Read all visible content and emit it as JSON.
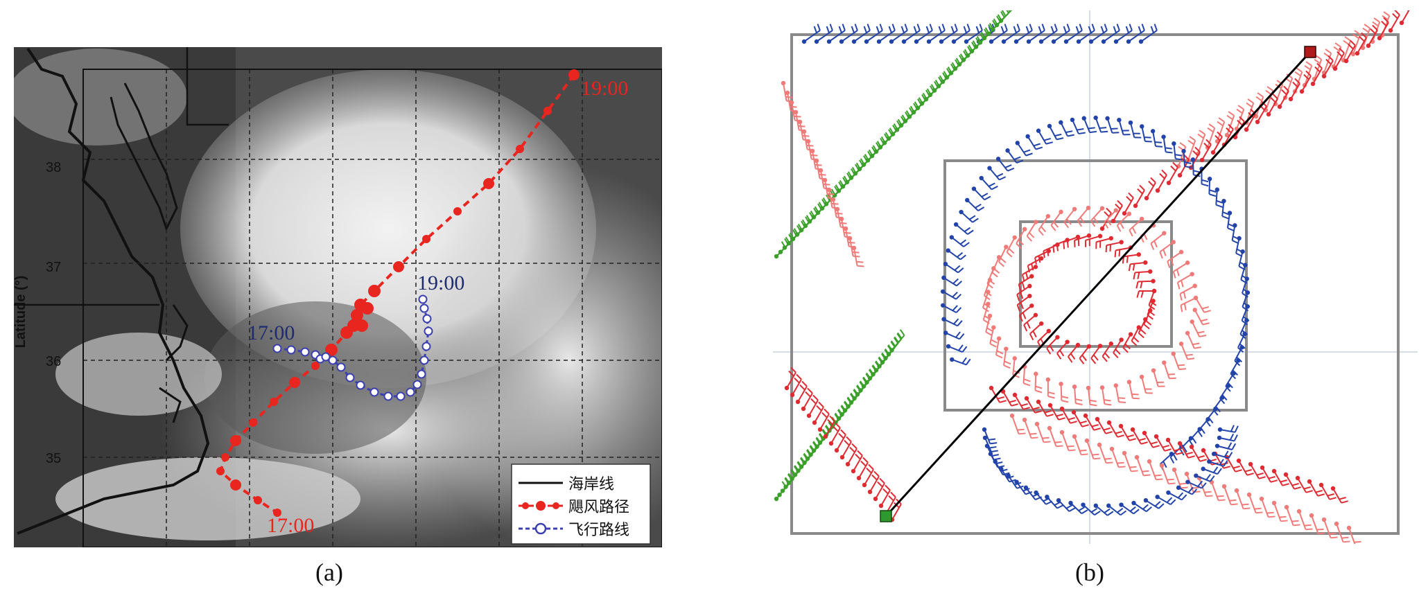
{
  "panel_a": {
    "caption": "(a)",
    "y_axis_title": "Latitude (°)",
    "lat_ticks": [
      "38",
      "37",
      "36",
      "35"
    ],
    "time_labels": {
      "typhoon_end": "19:00",
      "typhoon_start": "17:00",
      "flight_start": "17:00",
      "flight_end": "19:00"
    },
    "legend": {
      "coastline": "海岸线",
      "typhoon_track": "飓风路径",
      "flight_track": "飞行路线"
    },
    "colors": {
      "typhoon": "#e8251f",
      "flight": "#3b3fb0",
      "flight_time_label": "#1e2b6e",
      "coastline": "#111111"
    }
  },
  "panel_b": {
    "caption": "(b)",
    "colors": {
      "red_barbs": "#e02a32",
      "light_red_barbs": "#f07a78",
      "blue_barbs": "#2244aa",
      "green_barbs": "#3aa02a",
      "track": "#000000",
      "start_marker": "#2e9a2e",
      "end_marker": "#b11a1a",
      "box": "#8a8a8a"
    }
  }
}
